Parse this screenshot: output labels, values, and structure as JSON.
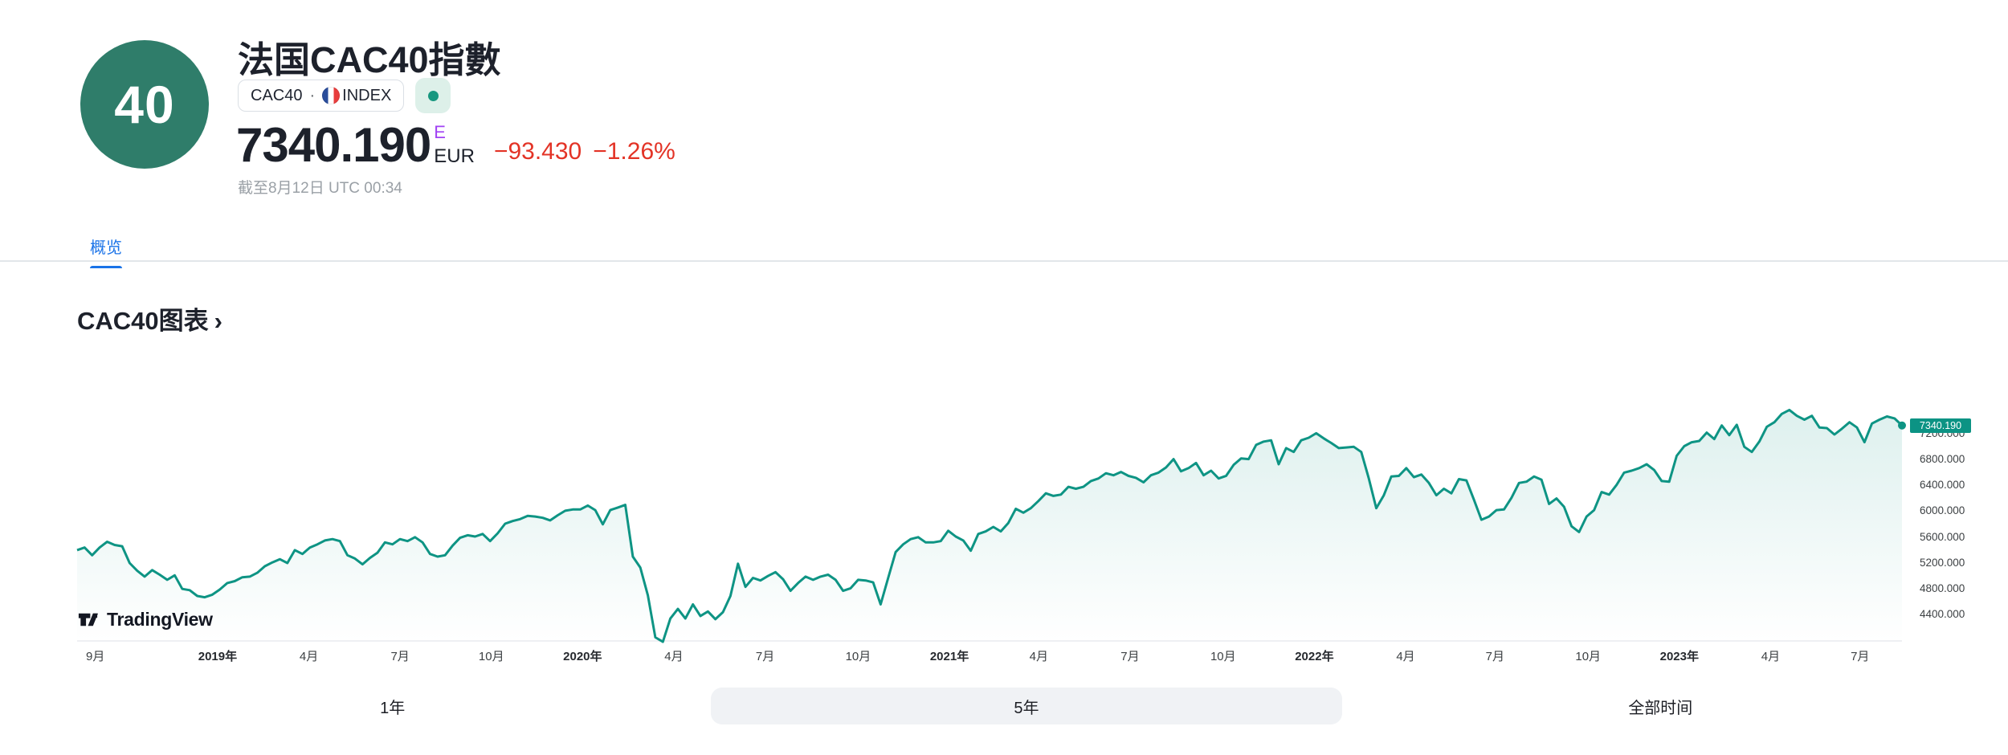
{
  "header": {
    "avatar_text": "40",
    "title": "法国CAC40指數",
    "ticker": {
      "symbol": "CAC40",
      "separator": "·",
      "exchange": "INDEX"
    },
    "price": {
      "value": "7340.190",
      "superscript": "E",
      "currency": "EUR",
      "change": "−93.430",
      "change_pct": "−1.26%"
    },
    "as_of": "截至8月12日 UTC 00:34"
  },
  "tabs": [
    {
      "label": "概览",
      "active": true
    }
  ],
  "section": {
    "title": "CAC40图表",
    "chevron": "›"
  },
  "attribution": {
    "name": "TradingView"
  },
  "range_buttons": [
    {
      "label": "1年",
      "selected": false
    },
    {
      "label": "5年",
      "selected": true
    },
    {
      "label": "全部时间",
      "selected": false
    }
  ],
  "colors": {
    "line": "#0e9484",
    "badge": "#0c9384",
    "area_top": "rgba(14,148,132,0.14)",
    "area_bottom": "rgba(14,148,132,0)",
    "axis_line": "#e8ebef",
    "accent_blue": "#1a73e8",
    "down_red": "#e33326",
    "avatar_teal": "#2f7d6a",
    "status_mint": "#ddf0e9",
    "status_dot": "#17977f"
  },
  "chart_data": {
    "type": "area",
    "title": "CAC40图表",
    "currency": "EUR",
    "x_range": [
      "2018-08",
      "2023-08"
    ],
    "ylim": [
      3900,
      7700
    ],
    "grid": false,
    "legend_position": "none",
    "last_value": 7340.19,
    "last_value_label": "7340.190",
    "y_ticks": [
      {
        "label": "7200.000",
        "value": 7200
      },
      {
        "label": "6800.000",
        "value": 6800
      },
      {
        "label": "6400.000",
        "value": 6400
      },
      {
        "label": "6000.000",
        "value": 6000
      },
      {
        "label": "5600.000",
        "value": 5600
      },
      {
        "label": "5200.000",
        "value": 5200
      },
      {
        "label": "4800.000",
        "value": 4800
      },
      {
        "label": "4400.000",
        "value": 4400
      }
    ],
    "x_ticks": [
      {
        "label": "9月",
        "pos": 0.01,
        "bold": false
      },
      {
        "label": "2019年",
        "pos": 0.077,
        "bold": true
      },
      {
        "label": "4月",
        "pos": 0.127,
        "bold": false
      },
      {
        "label": "7月",
        "pos": 0.177,
        "bold": false
      },
      {
        "label": "10月",
        "pos": 0.227,
        "bold": false
      },
      {
        "label": "2020年",
        "pos": 0.277,
        "bold": true
      },
      {
        "label": "4月",
        "pos": 0.327,
        "bold": false
      },
      {
        "label": "7月",
        "pos": 0.377,
        "bold": false
      },
      {
        "label": "10月",
        "pos": 0.428,
        "bold": false
      },
      {
        "label": "2021年",
        "pos": 0.478,
        "bold": true
      },
      {
        "label": "4月",
        "pos": 0.527,
        "bold": false
      },
      {
        "label": "7月",
        "pos": 0.577,
        "bold": false
      },
      {
        "label": "10月",
        "pos": 0.628,
        "bold": false
      },
      {
        "label": "2022年",
        "pos": 0.678,
        "bold": true
      },
      {
        "label": "4月",
        "pos": 0.728,
        "bold": false
      },
      {
        "label": "7月",
        "pos": 0.777,
        "bold": false
      },
      {
        "label": "10月",
        "pos": 0.828,
        "bold": false
      },
      {
        "label": "2023年",
        "pos": 0.878,
        "bold": true
      },
      {
        "label": "4月",
        "pos": 0.928,
        "bold": false
      },
      {
        "label": "7月",
        "pos": 0.977,
        "bold": false
      }
    ],
    "values": [
      5410,
      5450,
      5330,
      5450,
      5540,
      5490,
      5470,
      5210,
      5090,
      5000,
      5100,
      5030,
      4950,
      5020,
      4810,
      4790,
      4700,
      4680,
      4720,
      4800,
      4900,
      4930,
      4990,
      5000,
      5060,
      5160,
      5220,
      5270,
      5210,
      5410,
      5350,
      5450,
      5500,
      5560,
      5580,
      5550,
      5330,
      5280,
      5190,
      5290,
      5370,
      5530,
      5500,
      5580,
      5550,
      5610,
      5530,
      5350,
      5310,
      5330,
      5480,
      5600,
      5640,
      5620,
      5660,
      5550,
      5670,
      5820,
      5860,
      5890,
      5940,
      5930,
      5910,
      5870,
      5950,
      6020,
      6040,
      6040,
      6100,
      6030,
      5810,
      6030,
      6070,
      6110,
      5310,
      5140,
      4710,
      4060,
      3990,
      4350,
      4500,
      4350,
      4570,
      4390,
      4460,
      4340,
      4450,
      4700,
      5200,
      4840,
      4980,
      4940,
      5010,
      5070,
      4960,
      4780,
      4900,
      5000,
      4950,
      5000,
      5030,
      4950,
      4780,
      4820,
      4950,
      4940,
      4910,
      4570,
      4980,
      5380,
      5500,
      5580,
      5610,
      5530,
      5530,
      5550,
      5710,
      5620,
      5560,
      5400,
      5660,
      5700,
      5770,
      5700,
      5830,
      6050,
      5990,
      6060,
      6170,
      6290,
      6250,
      6270,
      6390,
      6360,
      6390,
      6480,
      6520,
      6600,
      6570,
      6620,
      6560,
      6530,
      6460,
      6570,
      6610,
      6690,
      6820,
      6630,
      6680,
      6760,
      6570,
      6640,
      6520,
      6560,
      6730,
      6830,
      6820,
      7040,
      7090,
      7110,
      6740,
      6990,
      6930,
      7110,
      7150,
      7220,
      7140,
      7070,
      6990,
      7000,
      7010,
      6930,
      6520,
      6060,
      6260,
      6550,
      6560,
      6680,
      6540,
      6580,
      6450,
      6260,
      6360,
      6290,
      6510,
      6490,
      6190,
      5880,
      5930,
      6030,
      6040,
      6220,
      6450,
      6470,
      6550,
      6500,
      6125,
      6210,
      6080,
      5780,
      5690,
      5930,
      6030,
      6310,
      6270,
      6420,
      6610,
      6640,
      6680,
      6740,
      6650,
      6480,
      6470,
      6870,
      7020,
      7080,
      7100,
      7230,
      7130,
      7340,
      7190,
      7350,
      7010,
      6930,
      7090,
      7320,
      7390,
      7520,
      7580,
      7490,
      7430,
      7490,
      7310,
      7300,
      7200,
      7290,
      7390,
      7310,
      7080,
      7370,
      7430,
      7480,
      7450,
      7340.19
    ]
  }
}
